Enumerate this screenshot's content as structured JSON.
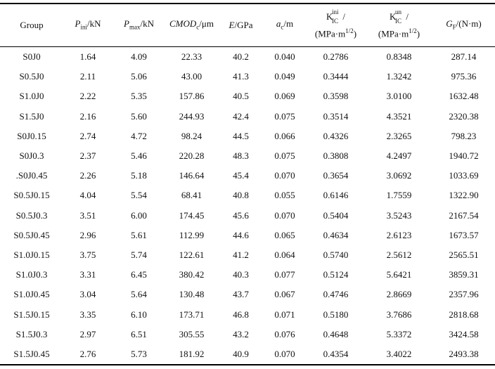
{
  "table": {
    "header": [
      [
        "Group"
      ],
      [
        "P",
        "ini",
        "/kN"
      ],
      [
        "P",
        "max",
        "/kN"
      ],
      [
        "CMOD",
        "c",
        "/μm"
      ],
      [
        "E",
        "/GPa"
      ],
      [
        "a",
        "c",
        "/m"
      ],
      [
        "K",
        "ini",
        "IC",
        "/",
        "(MPa·m",
        "1/2",
        ")"
      ],
      [
        "K",
        "un",
        "IC",
        "/",
        "(MPa·m",
        "1/2",
        ")"
      ],
      [
        "G",
        "F",
        "/(N·m)"
      ]
    ],
    "rows": [
      [
        "S0J0",
        "1.64",
        "4.09",
        "22.33",
        "40.2",
        "0.040",
        "0.2786",
        "0.8348",
        "287.14"
      ],
      [
        "S0.5J0",
        "2.11",
        "5.06",
        "43.00",
        "41.3",
        "0.049",
        "0.3444",
        "1.3242",
        "975.36"
      ],
      [
        "S1.0J0",
        "2.22",
        "5.35",
        "157.86",
        "40.5",
        "0.069",
        "0.3598",
        "3.0100",
        "1632.48"
      ],
      [
        "S1.5J0",
        "2.16",
        "5.60",
        "244.93",
        "42.4",
        "0.075",
        "0.3514",
        "4.3521",
        "2320.38"
      ],
      [
        "S0J0.15",
        "2.74",
        "4.72",
        "98.24",
        "44.5",
        "0.066",
        "0.4326",
        "2.3265",
        "798.23"
      ],
      [
        "S0J0.3",
        "2.37",
        "5.46",
        "220.28",
        "48.3",
        "0.075",
        "0.3808",
        "4.2497",
        "1940.72"
      ],
      [
        ".S0J0.45",
        "2.26",
        "5.18",
        "146.64",
        "45.4",
        "0.070",
        "0.3654",
        "3.0692",
        "1033.69"
      ],
      [
        "S0.5J0.15",
        "4.04",
        "5.54",
        "68.41",
        "40.8",
        "0.055",
        "0.6146",
        "1.7559",
        "1322.90"
      ],
      [
        "S0.5J0.3",
        "3.51",
        "6.00",
        "174.45",
        "45.6",
        "0.070",
        "0.5404",
        "3.5243",
        "2167.54"
      ],
      [
        "S0.5J0.45",
        "2.96",
        "5.61",
        "112.99",
        "44.6",
        "0.065",
        "0.4634",
        "2.6123",
        "1673.57"
      ],
      [
        "S1.0J0.15",
        "3.75",
        "5.74",
        "122.61",
        "41.2",
        "0.064",
        "0.5740",
        "2.5612",
        "2565.51"
      ],
      [
        "S1.0J0.3",
        "3.31",
        "6.45",
        "380.42",
        "40.3",
        "0.077",
        "0.5124",
        "5.6421",
        "3859.31"
      ],
      [
        "S1.0J0.45",
        "3.04",
        "5.64",
        "130.48",
        "43.7",
        "0.067",
        "0.4746",
        "2.8669",
        "2357.96"
      ],
      [
        "S1.5J0.15",
        "3.35",
        "6.10",
        "173.71",
        "46.8",
        "0.071",
        "0.5180",
        "3.7686",
        "2818.68"
      ],
      [
        "S1.5J0.3",
        "2.97",
        "6.51",
        "305.55",
        "43.2",
        "0.076",
        "0.4648",
        "5.3372",
        "3424.58"
      ],
      [
        "S1.5J0.45",
        "2.76",
        "5.73",
        "181.92",
        "40.9",
        "0.070",
        "0.4354",
        "3.4022",
        "2493.38"
      ]
    ]
  }
}
